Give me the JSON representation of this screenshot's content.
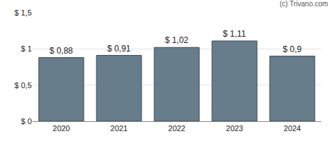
{
  "chart_data": {
    "type": "bar",
    "categories": [
      "2020",
      "2021",
      "2022",
      "2023",
      "2024"
    ],
    "values": [
      0.88,
      0.91,
      1.02,
      1.11,
      0.9
    ],
    "value_labels": [
      "$ 0,88",
      "$ 0,91",
      "$ 1,02",
      "$ 1,11",
      "$ 0,9"
    ],
    "data_labels": true,
    "color": "#677d8c",
    "ylim": [
      0,
      1.5
    ],
    "yticks": [
      {
        "value": 0,
        "label": "$ 0"
      },
      {
        "value": 0.5,
        "label": "$ 0,5"
      },
      {
        "value": 1,
        "label": "$ 1"
      },
      {
        "value": 1.5,
        "label": "$ 1,5"
      }
    ],
    "grid": true,
    "annotations": [
      "(c) Trivano.com"
    ]
  }
}
